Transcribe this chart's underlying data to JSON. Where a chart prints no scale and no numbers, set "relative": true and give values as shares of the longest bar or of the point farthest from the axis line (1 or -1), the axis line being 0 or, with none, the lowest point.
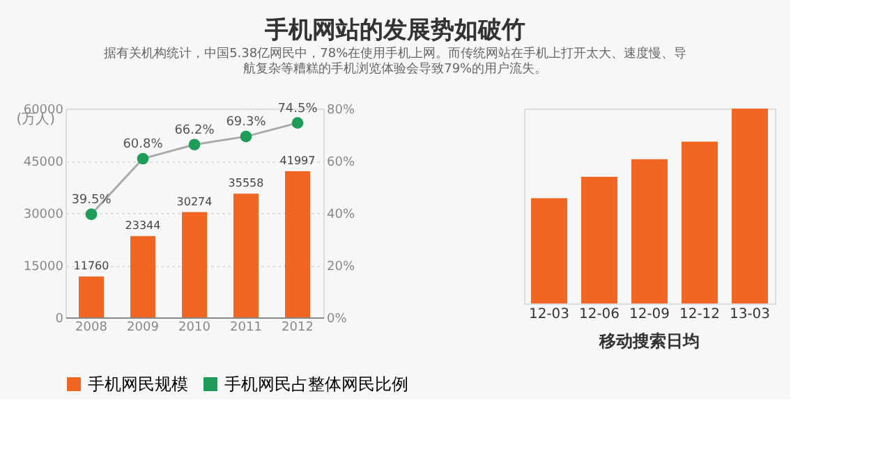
{
  "chart_data": [
    {
      "type": "bar",
      "title": "手机网站的发展势如破竹",
      "subtitle": "据有关机构统计，中国5.38亿网民中，78%在使用手机上网。而传统网站在手机上打开太大、速度慢、导航复杂等糟糕的手机浏览体验会导致79%的用户流失。",
      "categories": [
        "2008",
        "2009",
        "2010",
        "2011",
        "2012"
      ],
      "ylabel": "(万人)",
      "series": [
        {
          "name": "手机网民规模",
          "color": "#f26522",
          "values": [
            11760,
            23344,
            30274,
            35558,
            41997
          ]
        },
        {
          "name": "手机网民占整体网民比例",
          "type": "line",
          "axis": "y2",
          "color": "#1e9c5a",
          "marker": "circle",
          "values": [
            39.5,
            60.8,
            66.2,
            69.3,
            74.5
          ],
          "value_labels": [
            "39.5%",
            "60.8%",
            "66.2%",
            "69.3%",
            "74.5%"
          ]
        }
      ],
      "ylim": [
        0,
        60000
      ],
      "yticks": [
        0,
        15000,
        30000,
        45000,
        60000
      ],
      "y2lim": [
        0,
        80
      ],
      "y2ticks": [
        {
          "value": 0,
          "label": "0%"
        },
        {
          "value": 20,
          "label": "20%"
        },
        {
          "value": 40,
          "label": "40%"
        },
        {
          "value": 60,
          "label": "60%"
        },
        {
          "value": 80,
          "label": "80%"
        }
      ],
      "data_labels": true,
      "grid": "y",
      "legend": "bottom"
    },
    {
      "type": "bar",
      "relative": true,
      "categories": [
        "12-03",
        "12-06",
        "12-09",
        "12-12",
        "13-03"
      ],
      "values": [
        0.54,
        0.65,
        0.74,
        0.83,
        1
      ],
      "color": "#f26522",
      "annotations": [
        "移动搜索日均"
      ]
    }
  ]
}
